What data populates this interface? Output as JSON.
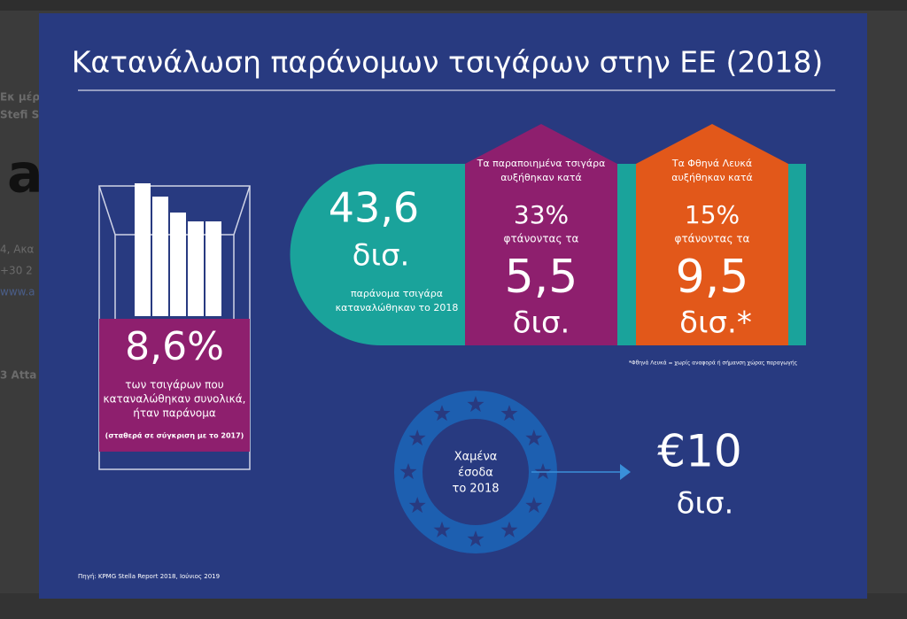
{
  "background": {
    "lines": [
      "Εκ μέρ",
      "Stefi S",
      "a",
      "4, Ακα",
      "+30 2",
      "www.a",
      "3 Atta"
    ]
  },
  "infographic": {
    "title": "Κατανάλωση παράνομων τσιγάρων στην ΕΕ (2018)",
    "pack": {
      "value": "8,6%",
      "lines": [
        "των τσιγάρων που",
        "καταναλώθηκαν συνολικά,",
        "ήταν παράνομα"
      ],
      "note": "(σταθερά σε σύγκριση με το 2017)"
    },
    "total": {
      "value": "43,6",
      "unit": "δισ.",
      "caption": [
        "παράνομα τσιγάρα",
        "καταναλώθηκαν το 2018"
      ]
    },
    "counterfeit": {
      "intro": [
        "Τα παραποιημένα τσιγάρα",
        "αυξήθηκαν κατά"
      ],
      "pct": "33%",
      "reaching": "φτάνοντας τα",
      "value": "5,5",
      "unit": "δισ."
    },
    "cheap_whites": {
      "intro": [
        "Τα Φθηνά Λευκά",
        "αυξήθηκαν κατά"
      ],
      "pct": "15%",
      "reaching": "φτάνοντας τα",
      "value": "9,5",
      "unit": "δισ.*"
    },
    "footnote": "*Φθηνά Λευκά = χωρίς αναφορά ή σήμανση χώρας παραγωγής",
    "eu": {
      "label": [
        "Χαμένα",
        "έσοδα",
        "το 2018"
      ],
      "value": "€10",
      "unit": "δισ."
    },
    "source": "Πηγή: KPMG Stella Report 2018, Ιούνιος 2019"
  }
}
